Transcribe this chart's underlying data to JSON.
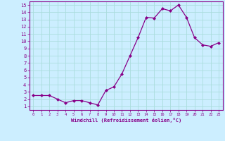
{
  "x": [
    0,
    1,
    2,
    3,
    4,
    5,
    6,
    7,
    8,
    9,
    10,
    11,
    12,
    13,
    14,
    15,
    16,
    17,
    18,
    19,
    20,
    21,
    22,
    23
  ],
  "y": [
    2.5,
    2.5,
    2.5,
    2.0,
    1.5,
    1.8,
    1.8,
    1.5,
    1.2,
    3.2,
    3.7,
    5.5,
    8.0,
    10.5,
    13.3,
    13.2,
    14.5,
    14.2,
    15.0,
    13.3,
    10.5,
    9.5,
    9.3,
    9.8
  ],
  "line_color": "#880088",
  "marker": "D",
  "marker_size": 2.0,
  "bg_color": "#cceeff",
  "grid_color": "#aadddd",
  "axis_color": "#880088",
  "tick_color": "#880088",
  "xlabel": "Windchill (Refroidissement éolien,°C)",
  "ylabel": "",
  "title": "",
  "xlim_min": -0.5,
  "xlim_max": 23.5,
  "ylim_min": 0.5,
  "ylim_max": 15.5,
  "yticks": [
    1,
    2,
    3,
    4,
    5,
    6,
    7,
    8,
    9,
    10,
    11,
    12,
    13,
    14,
    15
  ],
  "xticks": [
    0,
    1,
    2,
    3,
    4,
    5,
    6,
    7,
    8,
    9,
    10,
    11,
    12,
    13,
    14,
    15,
    16,
    17,
    18,
    19,
    20,
    21,
    22,
    23
  ]
}
